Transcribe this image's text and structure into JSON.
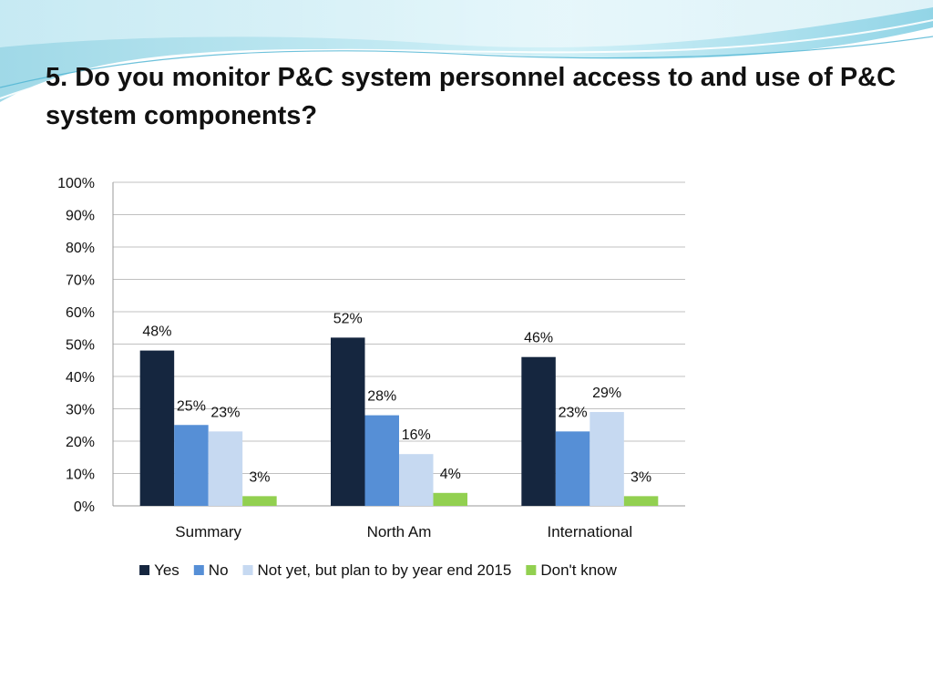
{
  "slide": {
    "title": "5. Do you monitor P&C system personnel access to and use of P&C system components?"
  },
  "chart_data": {
    "type": "bar",
    "title": "",
    "xlabel": "",
    "ylabel": "",
    "categories": [
      "Summary",
      "North Am",
      "International"
    ],
    "series": [
      {
        "name": "Yes",
        "color": "#15263f",
        "values": [
          48,
          52,
          46
        ],
        "labels": [
          "48%",
          "52%",
          "46%"
        ]
      },
      {
        "name": "No",
        "color": "#568fd6",
        "values": [
          25,
          28,
          23
        ],
        "labels": [
          "25%",
          "28%",
          "23%"
        ]
      },
      {
        "name": "Not yet, but plan to by year end 2015",
        "color": "#c6d9f1",
        "values": [
          23,
          16,
          29
        ],
        "labels": [
          "23%",
          "16%",
          "29%"
        ]
      },
      {
        "name": "Don't know",
        "color": "#92d050",
        "values": [
          3,
          4,
          3
        ],
        "labels": [
          "3%",
          "4%",
          "3%"
        ]
      }
    ],
    "ylim": [
      0,
      100
    ],
    "yticks": [
      "0%",
      "10%",
      "20%",
      "30%",
      "40%",
      "50%",
      "60%",
      "70%",
      "80%",
      "90%",
      "100%"
    ],
    "grid": true,
    "legend_position": "bottom"
  }
}
